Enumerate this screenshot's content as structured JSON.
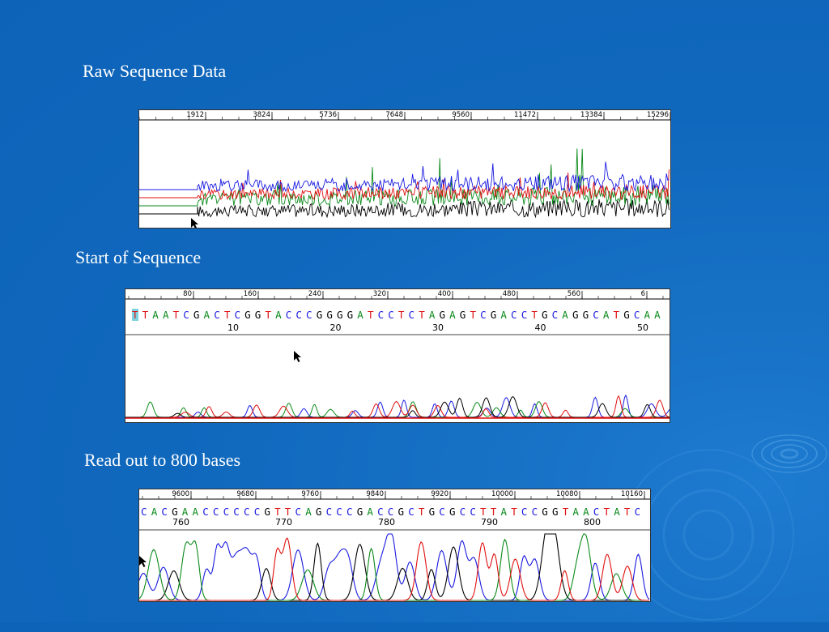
{
  "slide": {
    "headings": {
      "raw": "Raw Sequence Data",
      "start": "Start of Sequence",
      "readout": "Read out to 800 bases"
    }
  },
  "panels": {
    "raw": {
      "scale_ticks": [
        "1912",
        "3824",
        "5736",
        "7648",
        "9560",
        "11472",
        "13384",
        "15296"
      ],
      "trace_colors": [
        "#000000",
        "#0a8a1a",
        "#e01010",
        "#1a1ae0"
      ]
    },
    "start": {
      "scale_ticks": [
        "80",
        "160",
        "240",
        "320",
        "400",
        "480",
        "560",
        "6"
      ],
      "sequence": "TTAATCGACTCGGTACCCGGGGATCCTCTAGAGTCGACCTGCAGGCATGCAA",
      "position_numbers": [
        "10",
        "20",
        "30",
        "40",
        "50"
      ]
    },
    "readout": {
      "scale_ticks": [
        "9600",
        "9680",
        "9760",
        "9840",
        "9920",
        "10000",
        "10080",
        "10160"
      ],
      "sequence": "CACGAACCCCCCGTTCAGCCCGACCGCTGCGCCTTATCCGGTAACTATC",
      "position_numbers": [
        "760",
        "770",
        "780",
        "790",
        "800"
      ]
    },
    "base_colors": {
      "A": "#0a8a1a",
      "C": "#1a1ae0",
      "G": "#000000",
      "T": "#e01010"
    }
  }
}
